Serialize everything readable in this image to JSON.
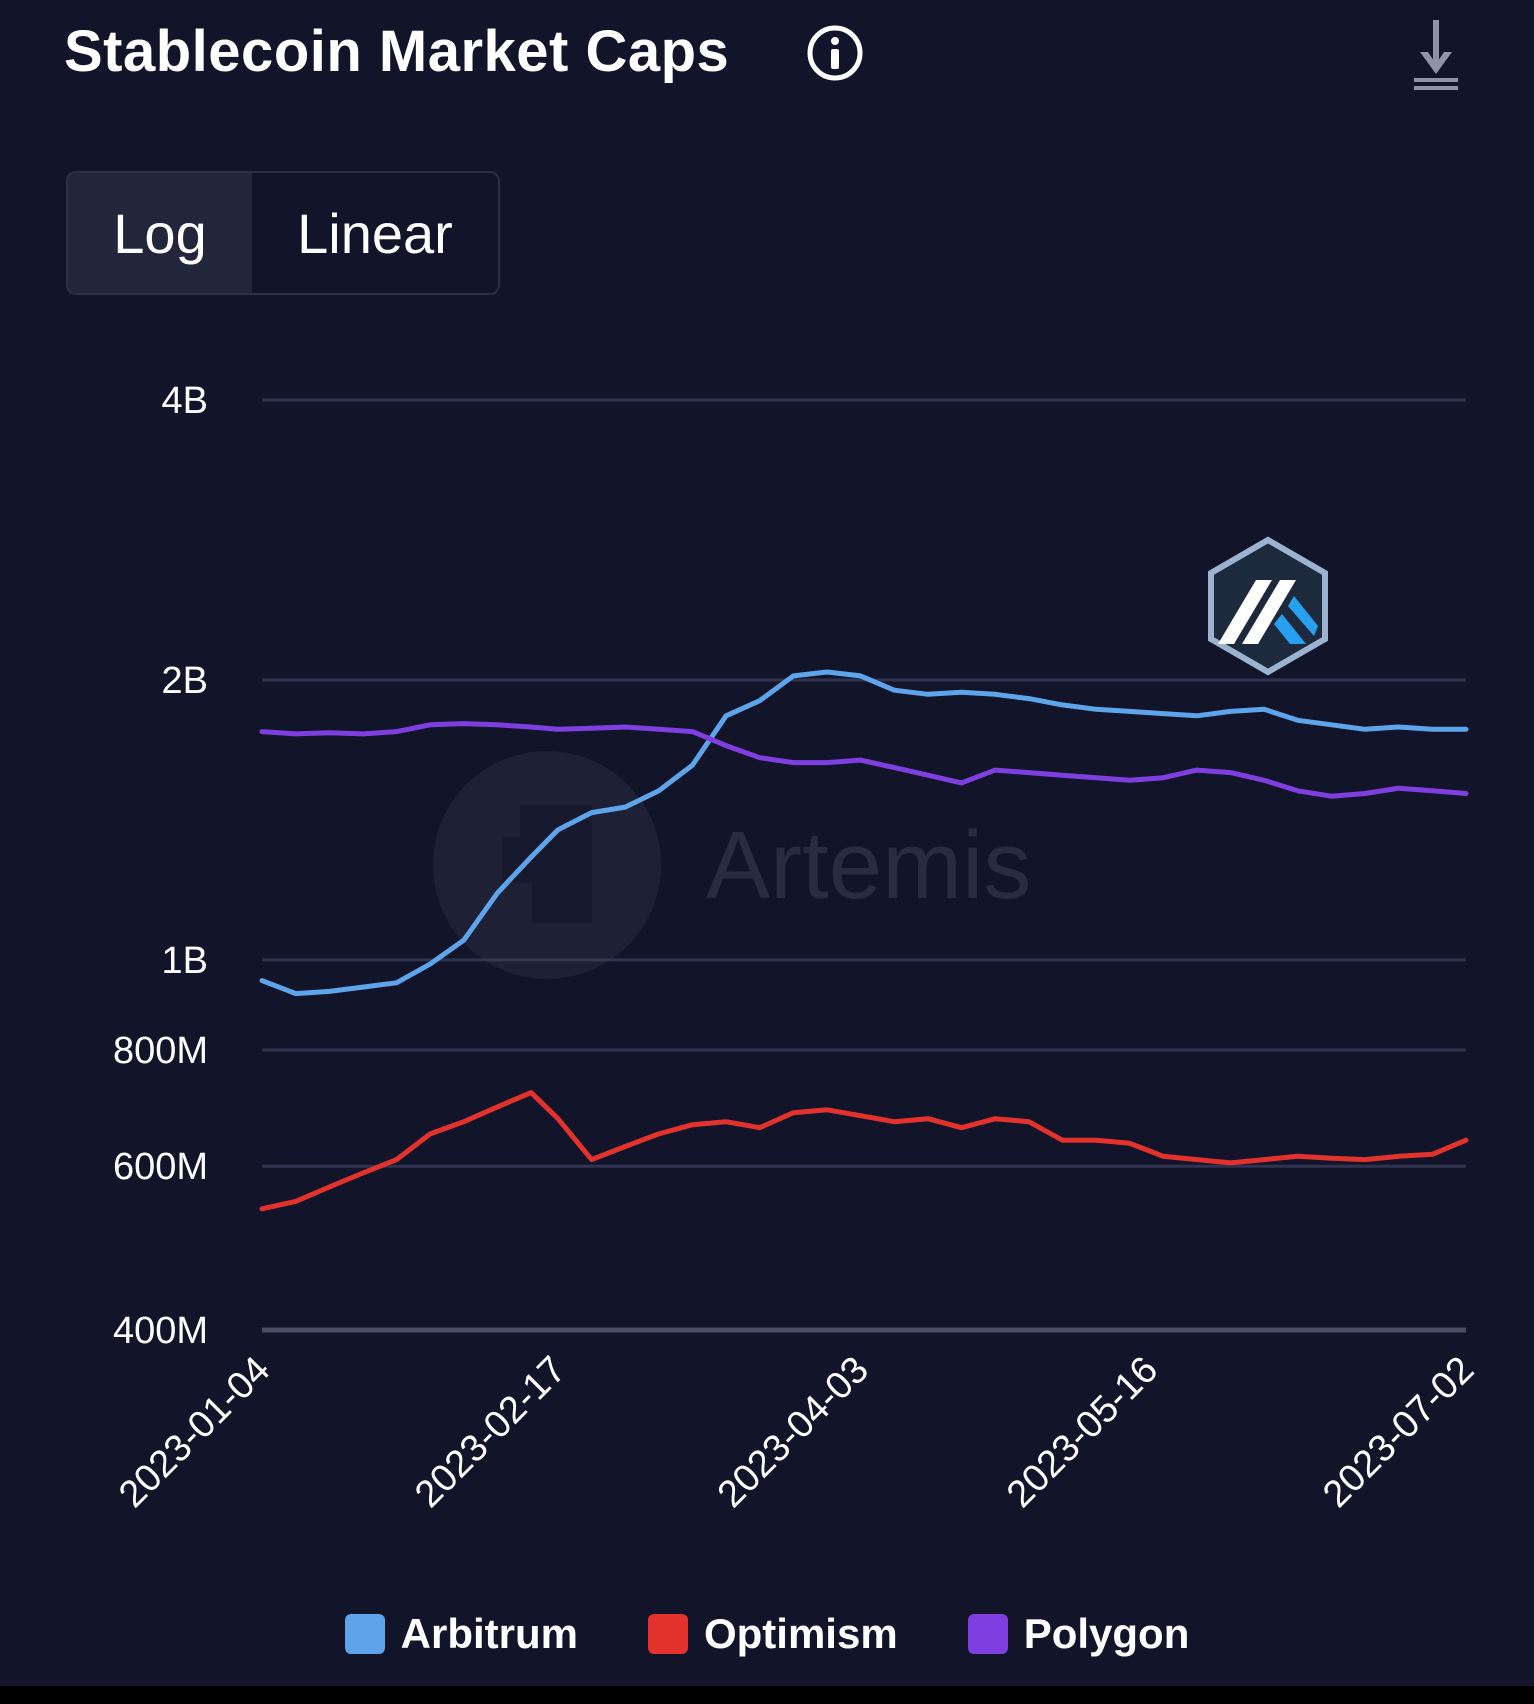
{
  "header": {
    "title": "Stablecoin Market Caps",
    "info_icon": "info-circle-icon",
    "download_icon": "download-icon"
  },
  "scale_toggle": {
    "options": [
      "Log",
      "Linear"
    ],
    "selected": "Log"
  },
  "watermark": {
    "text": "Artemis"
  },
  "overlay_logo": "arbitrum-logo",
  "colors": {
    "background": "#12142a",
    "grid": "#2f3350",
    "Arbitrum": "#5ea4ea",
    "Optimism": "#e2322b",
    "Polygon": "#7f3fe0"
  },
  "chart_data": {
    "type": "line",
    "title": "Stablecoin Market Caps",
    "xlabel": "",
    "ylabel": "",
    "y_scale": "log",
    "ylim": [
      400000000,
      4000000000
    ],
    "xlim": [
      "2023-01-04",
      "2023-07-02"
    ],
    "y_ticks": [
      {
        "value": 400000000,
        "label": "400M"
      },
      {
        "value": 600000000,
        "label": "600M"
      },
      {
        "value": 800000000,
        "label": "800M"
      },
      {
        "value": 1000000000,
        "label": "1B"
      },
      {
        "value": 2000000000,
        "label": "2B"
      },
      {
        "value": 4000000000,
        "label": "4B"
      }
    ],
    "x_ticks": [
      "2023-01-04",
      "2023-02-17",
      "2023-04-03",
      "2023-05-16",
      "2023-07-02"
    ],
    "grid": true,
    "legend_position": "bottom",
    "series": [
      {
        "name": "Arbitrum",
        "x": [
          "2023-01-04",
          "2023-01-09",
          "2023-01-14",
          "2023-01-19",
          "2023-01-24",
          "2023-01-29",
          "2023-02-03",
          "2023-02-08",
          "2023-02-13",
          "2023-02-17",
          "2023-02-22",
          "2023-02-27",
          "2023-03-04",
          "2023-03-09",
          "2023-03-14",
          "2023-03-19",
          "2023-03-24",
          "2023-03-29",
          "2023-04-03",
          "2023-04-08",
          "2023-04-13",
          "2023-04-18",
          "2023-04-23",
          "2023-04-28",
          "2023-05-03",
          "2023-05-08",
          "2023-05-13",
          "2023-05-18",
          "2023-05-23",
          "2023-05-28",
          "2023-06-02",
          "2023-06-07",
          "2023-06-12",
          "2023-06-17",
          "2023-06-22",
          "2023-06-27",
          "2023-07-02"
        ],
        "values": [
          950000000,
          920000000,
          925000000,
          935000000,
          945000000,
          990000000,
          1050000000,
          1180000000,
          1290000000,
          1380000000,
          1440000000,
          1460000000,
          1520000000,
          1620000000,
          1830000000,
          1900000000,
          2020000000,
          2040000000,
          2020000000,
          1950000000,
          1930000000,
          1940000000,
          1930000000,
          1910000000,
          1880000000,
          1860000000,
          1850000000,
          1840000000,
          1830000000,
          1850000000,
          1860000000,
          1810000000,
          1790000000,
          1770000000,
          1780000000,
          1770000000,
          1770000000
        ]
      },
      {
        "name": "Optimism",
        "x": [
          "2023-01-04",
          "2023-01-09",
          "2023-01-14",
          "2023-01-19",
          "2023-01-24",
          "2023-01-29",
          "2023-02-03",
          "2023-02-08",
          "2023-02-13",
          "2023-02-17",
          "2023-02-22",
          "2023-02-27",
          "2023-03-04",
          "2023-03-09",
          "2023-03-14",
          "2023-03-19",
          "2023-03-24",
          "2023-03-29",
          "2023-04-03",
          "2023-04-08",
          "2023-04-13",
          "2023-04-18",
          "2023-04-23",
          "2023-04-28",
          "2023-05-03",
          "2023-05-08",
          "2023-05-13",
          "2023-05-18",
          "2023-05-23",
          "2023-05-28",
          "2023-06-02",
          "2023-06-07",
          "2023-06-12",
          "2023-06-17",
          "2023-06-22",
          "2023-06-27",
          "2023-07-02"
        ],
        "values": [
          540000000,
          550000000,
          570000000,
          590000000,
          610000000,
          650000000,
          670000000,
          695000000,
          720000000,
          675000000,
          610000000,
          630000000,
          650000000,
          665000000,
          670000000,
          660000000,
          685000000,
          690000000,
          680000000,
          670000000,
          675000000,
          660000000,
          675000000,
          670000000,
          640000000,
          640000000,
          635000000,
          615000000,
          610000000,
          605000000,
          610000000,
          615000000,
          612000000,
          610000000,
          615000000,
          618000000,
          640000000
        ]
      },
      {
        "name": "Polygon",
        "x": [
          "2023-01-04",
          "2023-01-09",
          "2023-01-14",
          "2023-01-19",
          "2023-01-24",
          "2023-01-29",
          "2023-02-03",
          "2023-02-08",
          "2023-02-13",
          "2023-02-17",
          "2023-02-22",
          "2023-02-27",
          "2023-03-04",
          "2023-03-09",
          "2023-03-14",
          "2023-03-19",
          "2023-03-24",
          "2023-03-29",
          "2023-04-03",
          "2023-04-08",
          "2023-04-13",
          "2023-04-18",
          "2023-04-23",
          "2023-04-28",
          "2023-05-03",
          "2023-05-08",
          "2023-05-13",
          "2023-05-18",
          "2023-05-23",
          "2023-05-28",
          "2023-06-02",
          "2023-06-07",
          "2023-06-12",
          "2023-06-17",
          "2023-06-22",
          "2023-06-27",
          "2023-07-02"
        ],
        "values": [
          1760000000,
          1750000000,
          1755000000,
          1750000000,
          1760000000,
          1790000000,
          1795000000,
          1790000000,
          1780000000,
          1770000000,
          1775000000,
          1780000000,
          1770000000,
          1760000000,
          1700000000,
          1650000000,
          1630000000,
          1630000000,
          1640000000,
          1610000000,
          1580000000,
          1550000000,
          1600000000,
          1590000000,
          1580000000,
          1570000000,
          1560000000,
          1570000000,
          1600000000,
          1590000000,
          1560000000,
          1520000000,
          1500000000,
          1510000000,
          1530000000,
          1520000000,
          1510000000
        ]
      }
    ]
  }
}
